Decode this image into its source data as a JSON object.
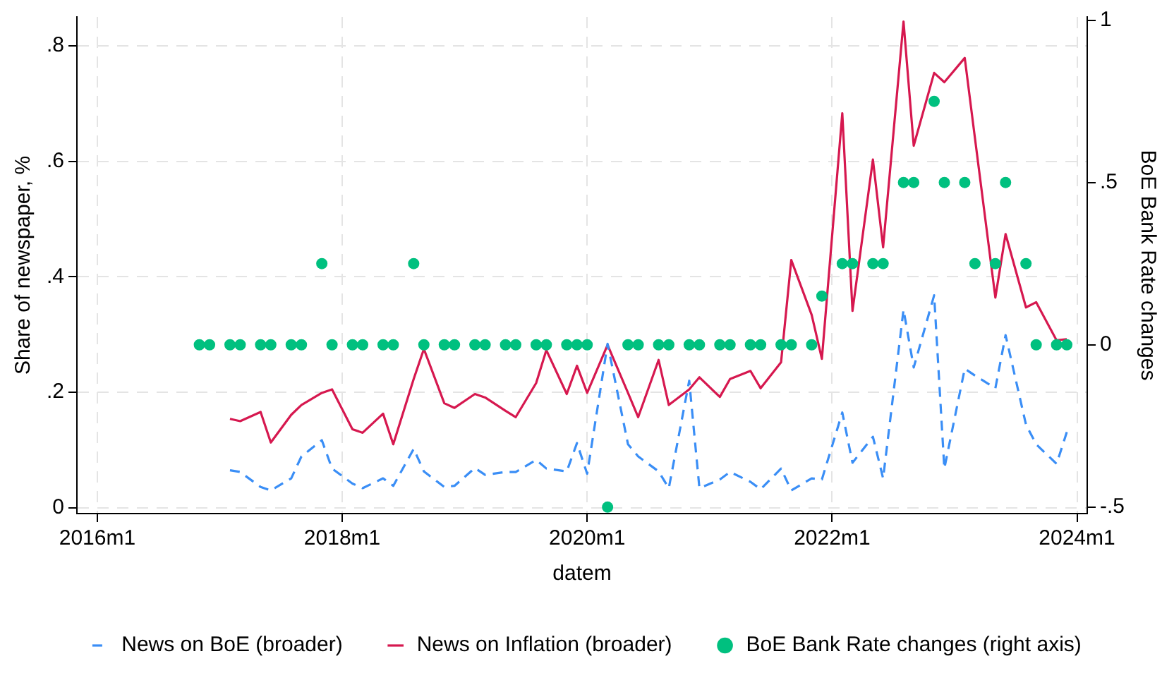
{
  "chart_data": {
    "type": "line",
    "xlabel": "datem",
    "ylabel": "Share of newspaper, %",
    "y2label": "BoE Bank Rate changes",
    "xlim": [
      "2015-11",
      "2024-02"
    ],
    "xticks": [
      {
        "value": "2016-01",
        "label": "2016m1"
      },
      {
        "value": "2018-01",
        "label": "2018m1"
      },
      {
        "value": "2020-01",
        "label": "2020m1"
      },
      {
        "value": "2022-01",
        "label": "2022m1"
      },
      {
        "value": "2024-01",
        "label": "2024m1"
      }
    ],
    "ylim": [
      -0.01,
      0.85
    ],
    "yticks": [
      0,
      {
        "value": 0.2,
        "label": ".2"
      },
      {
        "value": 0.4,
        "label": ".4"
      },
      {
        "value": 0.6,
        "label": ".6"
      },
      {
        "value": 0.8,
        "label": ".8"
      }
    ],
    "y2lim": [
      -0.52,
      1.01
    ],
    "y2ticks": [
      {
        "value": -0.5,
        "label": "-.5"
      },
      0,
      {
        "value": 0.5,
        "label": ".5"
      },
      1
    ],
    "grid": true,
    "legend": "bottom",
    "series": [
      {
        "name": "News on BoE (broader)",
        "color": "#3a8ef6",
        "line_style": "dashed",
        "marker": "none",
        "x": [
          "2017-02",
          "2017-03",
          "2017-05",
          "2017-06",
          "2017-08",
          "2017-09",
          "2017-11",
          "2017-12",
          "2018-02",
          "2018-03",
          "2018-05",
          "2018-06",
          "2018-08",
          "2018-09",
          "2018-11",
          "2018-12",
          "2019-02",
          "2019-03",
          "2019-05",
          "2019-06",
          "2019-08",
          "2019-09",
          "2019-11",
          "2019-12",
          "2020-01",
          "2020-03",
          "2020-05",
          "2020-06",
          "2020-08",
          "2020-09",
          "2020-11",
          "2020-12",
          "2021-02",
          "2021-03",
          "2021-05",
          "2021-06",
          "2021-08",
          "2021-09",
          "2021-11",
          "2021-12",
          "2022-02",
          "2022-03",
          "2022-05",
          "2022-06",
          "2022-08",
          "2022-09",
          "2022-11",
          "2022-12",
          "2023-02",
          "2023-03",
          "2023-05",
          "2023-06",
          "2023-08",
          "2023-09",
          "2023-11",
          "2023-12"
        ],
        "values": [
          0.065,
          0.062,
          0.036,
          0.03,
          0.051,
          0.089,
          0.117,
          0.068,
          0.042,
          0.034,
          0.051,
          0.038,
          0.102,
          0.063,
          0.036,
          0.038,
          0.069,
          0.057,
          0.062,
          0.062,
          0.083,
          0.068,
          0.063,
          0.112,
          0.059,
          0.284,
          0.11,
          0.089,
          0.063,
          0.034,
          0.22,
          0.034,
          0.049,
          0.062,
          0.045,
          0.032,
          0.068,
          0.03,
          0.051,
          0.049,
          0.165,
          0.078,
          0.123,
          0.051,
          0.343,
          0.243,
          0.368,
          0.068,
          0.241,
          0.229,
          0.207,
          0.299,
          0.144,
          0.11,
          0.076,
          0.131
        ]
      },
      {
        "name": "News on Inflation (broader)",
        "color": "#d6184f",
        "line_style": "solid",
        "marker": "none",
        "x": [
          "2017-02",
          "2017-03",
          "2017-05",
          "2017-06",
          "2017-08",
          "2017-09",
          "2017-11",
          "2017-12",
          "2018-02",
          "2018-03",
          "2018-05",
          "2018-06",
          "2018-08",
          "2018-09",
          "2018-11",
          "2018-12",
          "2019-02",
          "2019-03",
          "2019-05",
          "2019-06",
          "2019-08",
          "2019-09",
          "2019-11",
          "2019-12",
          "2020-01",
          "2020-03",
          "2020-05",
          "2020-06",
          "2020-08",
          "2020-09",
          "2020-11",
          "2020-12",
          "2021-02",
          "2021-03",
          "2021-05",
          "2021-06",
          "2021-08",
          "2021-09",
          "2021-11",
          "2021-12",
          "2022-02",
          "2022-03",
          "2022-05",
          "2022-06",
          "2022-08",
          "2022-09",
          "2022-11",
          "2022-12",
          "2023-02",
          "2023-03",
          "2023-05",
          "2023-06",
          "2023-08",
          "2023-09",
          "2023-11",
          "2023-12"
        ],
        "values": [
          0.154,
          0.15,
          0.166,
          0.113,
          0.161,
          0.178,
          0.199,
          0.205,
          0.136,
          0.13,
          0.163,
          0.11,
          0.223,
          0.275,
          0.181,
          0.173,
          0.197,
          0.191,
          0.168,
          0.157,
          0.216,
          0.273,
          0.197,
          0.246,
          0.199,
          0.282,
          0.199,
          0.157,
          0.256,
          0.178,
          0.205,
          0.226,
          0.192,
          0.223,
          0.237,
          0.207,
          0.252,
          0.429,
          0.334,
          0.258,
          0.683,
          0.341,
          0.603,
          0.451,
          0.842,
          0.627,
          0.753,
          0.737,
          0.779,
          0.64,
          0.364,
          0.474,
          0.347,
          0.356,
          0.29,
          0.292
        ]
      },
      {
        "name": "BoE Bank Rate changes (right axis)",
        "type": "scatter",
        "axis": "y2",
        "color": "#00c07f",
        "marker": "circle",
        "x": [
          "2016-11",
          "2016-12",
          "2017-02",
          "2017-03",
          "2017-05",
          "2017-06",
          "2017-08",
          "2017-09",
          "2017-11",
          "2017-12",
          "2018-02",
          "2018-03",
          "2018-05",
          "2018-06",
          "2018-08",
          "2018-09",
          "2018-11",
          "2018-12",
          "2019-02",
          "2019-03",
          "2019-05",
          "2019-06",
          "2019-08",
          "2019-09",
          "2019-11",
          "2019-12",
          "2020-01",
          "2020-03",
          "2020-05",
          "2020-06",
          "2020-08",
          "2020-09",
          "2020-11",
          "2020-12",
          "2021-02",
          "2021-03",
          "2021-05",
          "2021-06",
          "2021-08",
          "2021-09",
          "2021-11",
          "2021-12",
          "2022-02",
          "2022-03",
          "2022-05",
          "2022-06",
          "2022-08",
          "2022-09",
          "2022-11",
          "2022-12",
          "2023-02",
          "2023-03",
          "2023-05",
          "2023-06",
          "2023-08",
          "2023-09",
          "2023-11",
          "2023-12"
        ],
        "values": [
          0,
          0,
          0,
          0,
          0,
          0,
          0,
          0,
          0.25,
          0,
          0,
          0,
          0,
          0,
          0.25,
          0,
          0,
          0,
          0,
          0,
          0,
          0,
          0,
          0,
          0,
          0,
          0,
          -0.5,
          0,
          0,
          0,
          0,
          0,
          0,
          0,
          0,
          0,
          0,
          0,
          0,
          0,
          0.15,
          0.25,
          0.25,
          0.25,
          0.25,
          0.5,
          0.5,
          0.75,
          0.5,
          0.5,
          0.25,
          0.25,
          0.5,
          0.25,
          0,
          0,
          0
        ]
      }
    ]
  }
}
